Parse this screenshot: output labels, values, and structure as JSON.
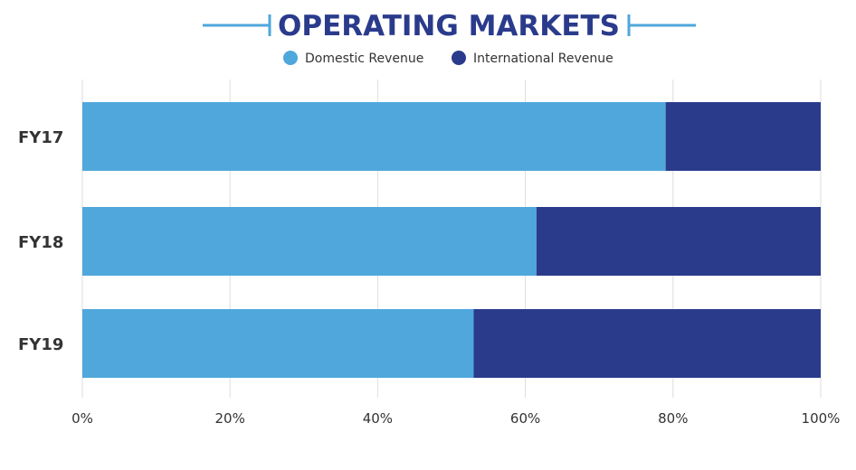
{
  "chart_data": {
    "type": "bar",
    "orientation": "horizontal",
    "stacked": true,
    "title": "OPERATING MARKETS",
    "categories": [
      "FY17",
      "FY18",
      "FY19"
    ],
    "series": [
      {
        "name": "Domestic Revenue",
        "values": [
          79,
          61.5,
          53
        ],
        "color": "#4fa7dc"
      },
      {
        "name": "International Revenue",
        "values": [
          21,
          38.5,
          47
        ],
        "color": "#2a3b8c"
      }
    ],
    "xlim": [
      0,
      100
    ],
    "xticks": [
      0,
      20,
      40,
      60,
      80,
      100
    ],
    "xtick_labels": [
      "0%",
      "20%",
      "40%",
      "60%",
      "80%",
      "100%"
    ],
    "grid": true,
    "legend": "top-center"
  },
  "colors": {
    "title": "#2a3b8c",
    "accent": "#4fa7dc",
    "grid": "#dddddd",
    "text": "#333333"
  }
}
